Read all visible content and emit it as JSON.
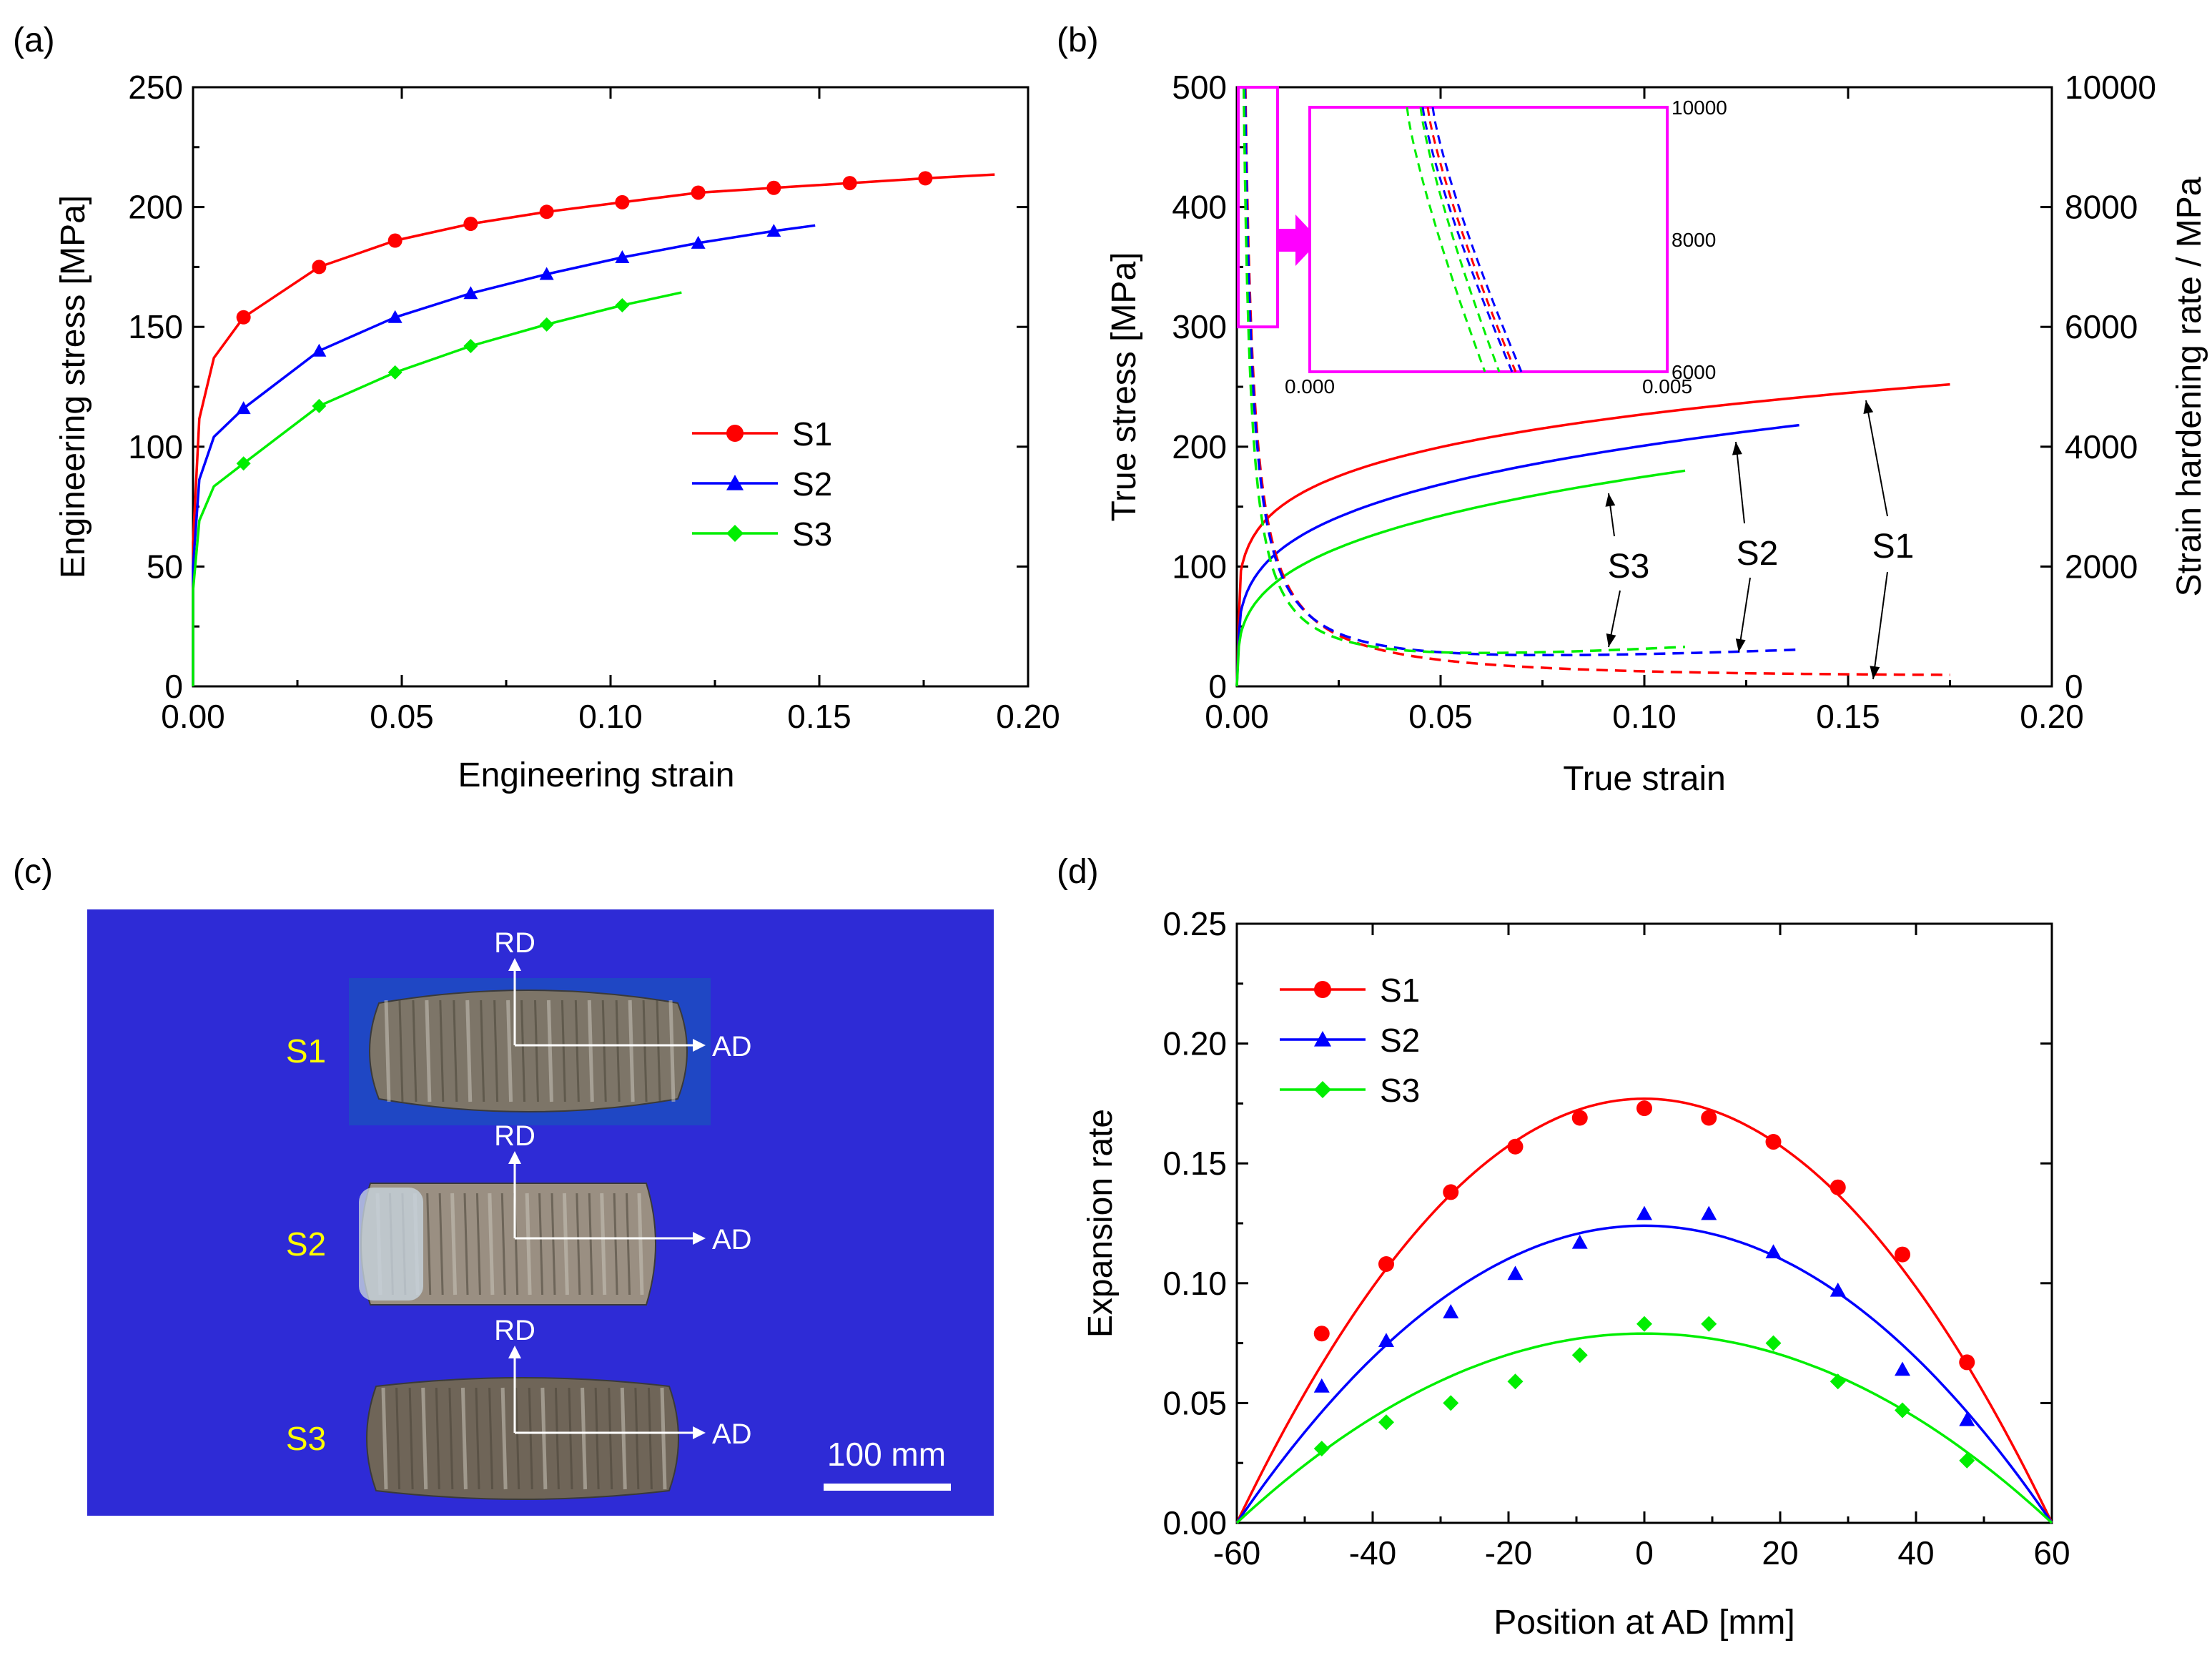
{
  "panel_labels": {
    "a": "(a)",
    "b": "(b)",
    "c": "(c)",
    "d": "(d)"
  },
  "colors": {
    "S1": "#ff0000",
    "S2": "#0000ff",
    "S3": "#00ee00",
    "inset_box": "#ff00ff",
    "photo_bg": "#2e2bd6",
    "photo_text": "#ffff00"
  },
  "chart_data": [
    {
      "id": "a",
      "type": "line",
      "xlabel": "Engineering strain",
      "ylabel": "Engineering stress [MPa]",
      "xlim": [
        0,
        0.2
      ],
      "ylim": [
        0,
        250
      ],
      "x_ticks": [
        "0.00",
        "0.05",
        "0.10",
        "0.15",
        "0.20"
      ],
      "y_ticks": [
        "0",
        "50",
        "100",
        "150",
        "200",
        "250"
      ],
      "legend": [
        "S1",
        "S2",
        "S3"
      ],
      "legend_position": "center-right",
      "series": [
        {
          "name": "S1",
          "marker": "circle",
          "end": 0.192,
          "x": [
            0.0121,
            0.0302,
            0.0484,
            0.0665,
            0.0847,
            0.1028,
            0.121,
            0.1391,
            0.1573,
            0.1754
          ],
          "values": [
            154,
            175,
            186,
            193,
            198,
            202,
            206,
            208,
            210,
            212
          ]
        },
        {
          "name": "S2",
          "marker": "triangle",
          "end": 0.149,
          "x": [
            0.0121,
            0.0302,
            0.0484,
            0.0665,
            0.0847,
            0.1028,
            0.121,
            0.1391
          ],
          "values": [
            116,
            140,
            154,
            164,
            172,
            179,
            185,
            190
          ]
        },
        {
          "name": "S3",
          "marker": "diamond",
          "end": 0.117,
          "x": [
            0.0121,
            0.0302,
            0.0484,
            0.0665,
            0.0847,
            0.1028
          ],
          "values": [
            93,
            117,
            131,
            142,
            151,
            159
          ]
        }
      ]
    },
    {
      "id": "b",
      "type": "line",
      "xlabel": "True strain",
      "ylabel": "True stress [MPa]",
      "y2label": "Strain hardening rate / MPa",
      "xlim": [
        0,
        0.2
      ],
      "ylim": [
        0,
        500
      ],
      "y2lim": [
        0,
        10000
      ],
      "x_ticks": [
        "0.00",
        "0.05",
        "0.10",
        "0.15",
        "0.20"
      ],
      "y_ticks": [
        "0",
        "100",
        "200",
        "300",
        "400",
        "500"
      ],
      "y2_ticks": [
        "0",
        "2000",
        "4000",
        "6000",
        "8000",
        "10000"
      ],
      "stress_series": [
        {
          "name": "S1",
          "end_x": 0.175,
          "end_y": 252,
          "y_at_0_01": 148
        },
        {
          "name": "S2",
          "end_x": 0.138,
          "end_y": 218,
          "y_at_0_01": 112
        },
        {
          "name": "S3",
          "end_x": 0.11,
          "end_y": 180,
          "y_at_0_01": 88
        }
      ],
      "hardening_series": [
        {
          "name": "S1",
          "end_x": 0.175,
          "end_y2": 80,
          "x_at_top": 0.0021
        },
        {
          "name": "S2",
          "end_x": 0.138,
          "end_y2": 520,
          "x_at_top": 0.002
        },
        {
          "name": "S3",
          "end_x": 0.11,
          "end_y2": 560,
          "x_at_top": 0.0017
        }
      ],
      "annotations": [
        "S3",
        "S2",
        "S1"
      ],
      "inset": {
        "x_ticks": [
          "0.000",
          "0.005"
        ],
        "y_ticks": [
          "6000",
          "8000",
          "10000"
        ],
        "xlim": [
          0,
          0.005
        ],
        "ylim": [
          6000,
          10000
        ]
      }
    },
    {
      "id": "d",
      "type": "scatter",
      "xlabel": "Position at AD [mm]",
      "ylabel": "Expansion rate",
      "xlim": [
        -60,
        60
      ],
      "ylim": [
        0,
        0.25
      ],
      "x_ticks": [
        "-60",
        "-40",
        "-20",
        "0",
        "20",
        "40",
        "60"
      ],
      "y_ticks": [
        "0.00",
        "0.05",
        "0.10",
        "0.15",
        "0.20",
        "0.25"
      ],
      "legend": [
        "S1",
        "S2",
        "S3"
      ],
      "legend_position": "top-left",
      "x": [
        -47.5,
        -38,
        -28.5,
        -19,
        -9.5,
        0,
        9.5,
        19,
        28.5,
        38,
        47.5
      ],
      "series": [
        {
          "name": "S1",
          "marker": "circle",
          "fit_peak": 0.177,
          "values": [
            0.079,
            0.108,
            0.138,
            0.157,
            0.169,
            0.173,
            0.169,
            0.159,
            0.14,
            0.112,
            0.067
          ]
        },
        {
          "name": "S2",
          "marker": "triangle",
          "fit_peak": 0.124,
          "values": [
            0.057,
            0.076,
            0.088,
            0.104,
            0.117,
            0.129,
            0.129,
            0.113,
            0.097,
            0.064,
            0.043
          ]
        },
        {
          "name": "S3",
          "marker": "diamond",
          "fit_peak": 0.079,
          "values": [
            0.031,
            0.042,
            0.05,
            0.059,
            0.07,
            0.083,
            0.083,
            0.075,
            0.059,
            0.047,
            0.026
          ]
        }
      ]
    }
  ],
  "photo": {
    "samples": [
      "S1",
      "S2",
      "S3"
    ],
    "axis_rd": "RD",
    "axis_ad": "AD",
    "scale_bar": "100 mm"
  }
}
